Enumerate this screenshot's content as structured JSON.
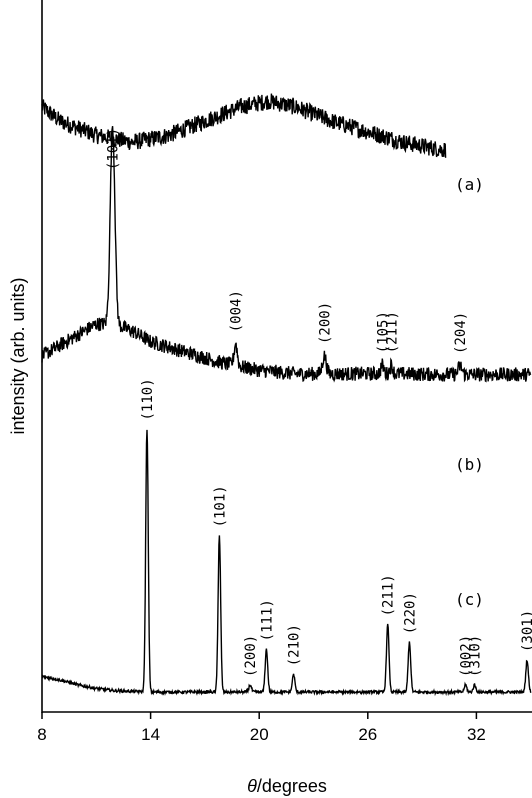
{
  "chart_data": {
    "type": "line",
    "xlabel_prefix": "θ",
    "xlabel_suffix": "/degrees",
    "ylabel": "intensity (arb. units)",
    "xlim": [
      8,
      35
    ],
    "x_ticks": [
      8,
      14,
      20,
      26,
      32
    ],
    "grid": false,
    "y_tick_labels": false,
    "series": [
      {
        "name": "(a)",
        "baseline": 0.81,
        "noise": 0.012,
        "profile": [
          [
            8,
            0.85
          ],
          [
            9,
            0.83
          ],
          [
            11,
            0.81
          ],
          [
            13,
            0.8
          ],
          [
            15,
            0.81
          ],
          [
            17,
            0.83
          ],
          [
            19,
            0.85
          ],
          [
            20.5,
            0.858
          ],
          [
            22,
            0.85
          ],
          [
            24,
            0.83
          ],
          [
            26,
            0.815
          ],
          [
            28,
            0.8
          ],
          [
            30,
            0.79
          ],
          [
            30.3,
            0.79
          ]
        ],
        "peaks": []
      },
      {
        "name": "(b)",
        "noise": 0.01,
        "profile": [
          [
            8,
            0.5
          ],
          [
            9,
            0.515
          ],
          [
            10,
            0.53
          ],
          [
            11,
            0.545
          ],
          [
            12,
            0.545
          ],
          [
            13,
            0.535
          ],
          [
            14,
            0.52
          ],
          [
            16,
            0.505
          ],
          [
            18,
            0.49
          ],
          [
            20,
            0.48
          ],
          [
            22,
            0.475
          ],
          [
            24,
            0.475
          ],
          [
            26,
            0.475
          ],
          [
            28,
            0.475
          ],
          [
            30,
            0.474
          ],
          [
            35,
            0.474
          ]
        ],
        "peaks": [
          {
            "x": 11.9,
            "height": 0.28,
            "width": 0.18,
            "label": "(101)"
          },
          {
            "x": 18.7,
            "height": 0.03,
            "width": 0.13,
            "label": "(004)"
          },
          {
            "x": 23.6,
            "height": 0.025,
            "width": 0.15,
            "label": "(200)"
          },
          {
            "x": 26.8,
            "height": 0.012,
            "width": 0.12,
            "label": "(105)"
          },
          {
            "x": 27.3,
            "height": 0.012,
            "width": 0.12,
            "label": "(211)"
          },
          {
            "x": 31.1,
            "height": 0.012,
            "width": 0.15,
            "label": "(204)"
          }
        ]
      },
      {
        "name": "(c)",
        "noise": 0.002,
        "profile": [
          [
            8,
            0.05
          ],
          [
            9,
            0.045
          ],
          [
            10,
            0.038
          ],
          [
            11,
            0.033
          ],
          [
            12,
            0.03
          ],
          [
            14,
            0.028
          ],
          [
            16,
            0.028
          ],
          [
            20,
            0.028
          ],
          [
            26,
            0.028
          ],
          [
            35,
            0.028
          ]
        ],
        "peaks": [
          {
            "x": 13.8,
            "height": 0.37,
            "width": 0.1,
            "label": "(110)"
          },
          {
            "x": 17.8,
            "height": 0.22,
            "width": 0.1,
            "label": "(101)"
          },
          {
            "x": 19.5,
            "height": 0.01,
            "width": 0.1,
            "label": "(200)"
          },
          {
            "x": 20.4,
            "height": 0.06,
            "width": 0.1,
            "label": "(111)"
          },
          {
            "x": 21.9,
            "height": 0.025,
            "width": 0.1,
            "label": "(210)"
          },
          {
            "x": 27.1,
            "height": 0.095,
            "width": 0.1,
            "label": "(211)"
          },
          {
            "x": 28.3,
            "height": 0.07,
            "width": 0.1,
            "label": "(220)"
          },
          {
            "x": 31.4,
            "height": 0.01,
            "width": 0.1,
            "label": "(002)"
          },
          {
            "x": 31.9,
            "height": 0.01,
            "width": 0.1,
            "label": "(310)"
          },
          {
            "x": 34.8,
            "height": 0.045,
            "width": 0.1,
            "label": "(301)"
          }
        ]
      }
    ]
  }
}
